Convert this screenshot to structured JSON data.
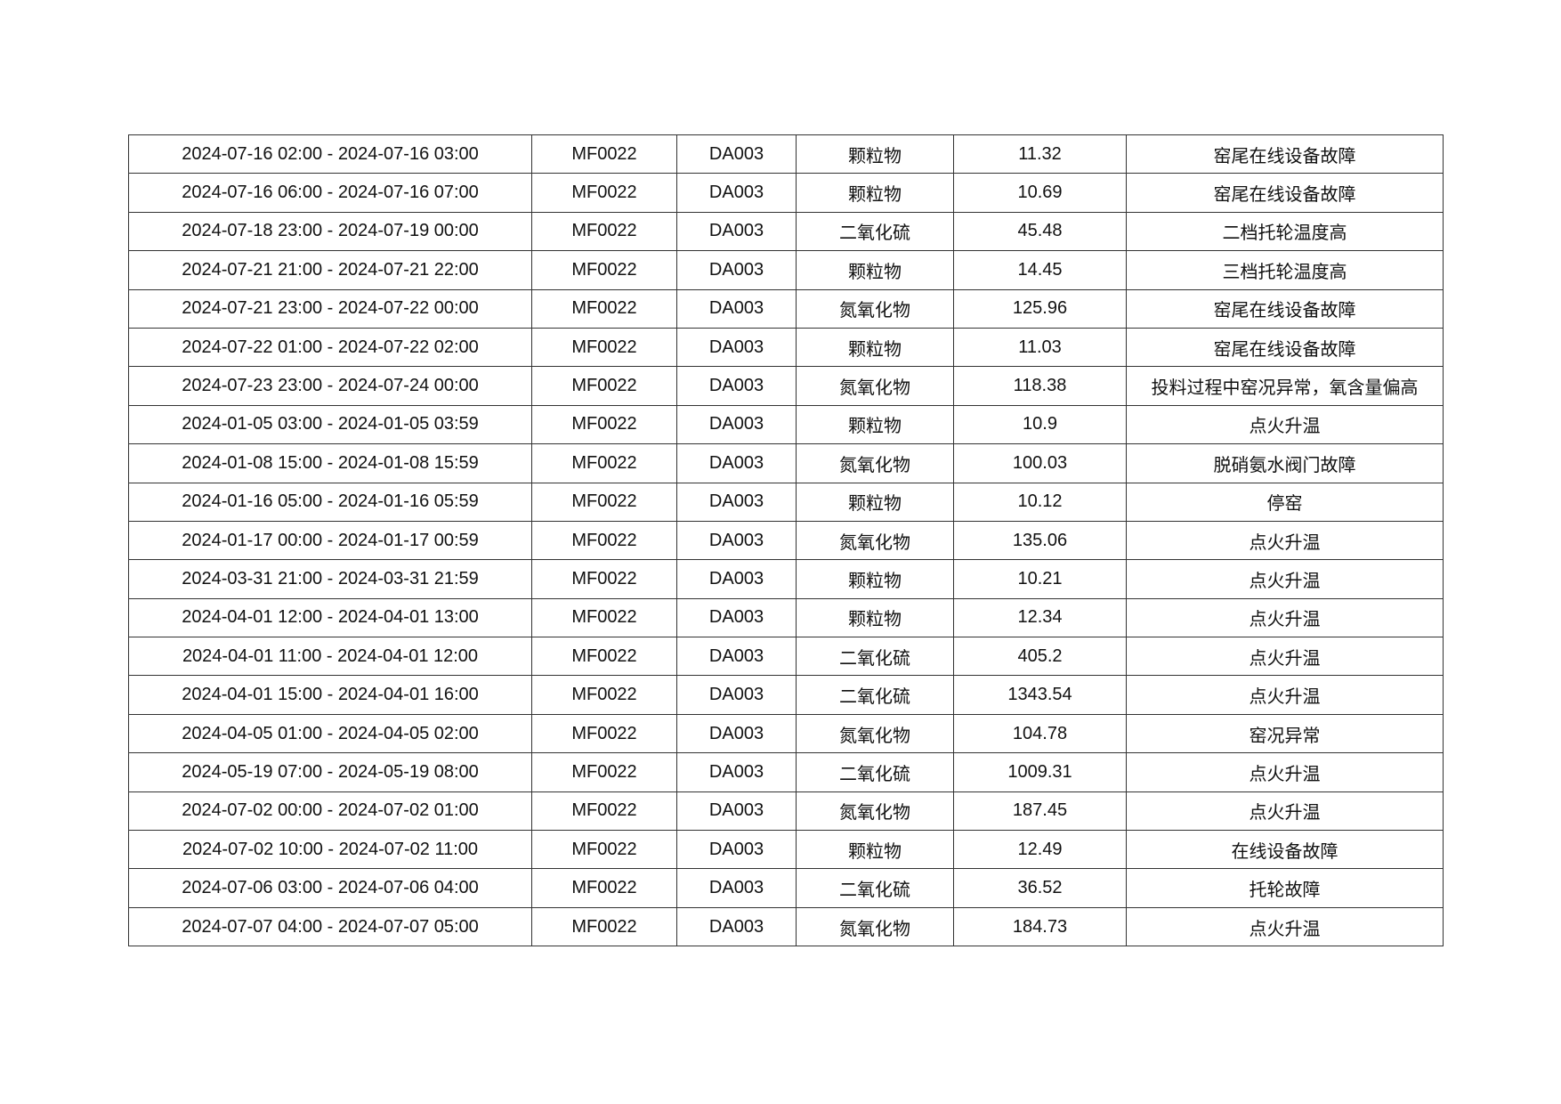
{
  "table": {
    "rows": [
      [
        "2024-07-16 02:00 - 2024-07-16 03:00",
        "MF0022",
        "DA003",
        "颗粒物",
        "11.32",
        "窑尾在线设备故障"
      ],
      [
        "2024-07-16 06:00 - 2024-07-16 07:00",
        "MF0022",
        "DA003",
        "颗粒物",
        "10.69",
        "窑尾在线设备故障"
      ],
      [
        "2024-07-18 23:00 - 2024-07-19 00:00",
        "MF0022",
        "DA003",
        "二氧化硫",
        "45.48",
        "二档托轮温度高"
      ],
      [
        "2024-07-21 21:00 - 2024-07-21 22:00",
        "MF0022",
        "DA003",
        "颗粒物",
        "14.45",
        "三档托轮温度高"
      ],
      [
        "2024-07-21 23:00 - 2024-07-22 00:00",
        "MF0022",
        "DA003",
        "氮氧化物",
        "125.96",
        "窑尾在线设备故障"
      ],
      [
        "2024-07-22 01:00 - 2024-07-22 02:00",
        "MF0022",
        "DA003",
        "颗粒物",
        "11.03",
        "窑尾在线设备故障"
      ],
      [
        "2024-07-23 23:00 - 2024-07-24 00:00",
        "MF0022",
        "DA003",
        "氮氧化物",
        "118.38",
        "投料过程中窑况异常，氧含量偏高"
      ],
      [
        "2024-01-05 03:00 - 2024-01-05 03:59",
        "MF0022",
        "DA003",
        "颗粒物",
        "10.9",
        "点火升温"
      ],
      [
        "2024-01-08 15:00 - 2024-01-08 15:59",
        "MF0022",
        "DA003",
        "氮氧化物",
        "100.03",
        "脱硝氨水阀门故障"
      ],
      [
        "2024-01-16 05:00 - 2024-01-16 05:59",
        "MF0022",
        "DA003",
        "颗粒物",
        "10.12",
        "停窑"
      ],
      [
        "2024-01-17 00:00 - 2024-01-17 00:59",
        "MF0022",
        "DA003",
        "氮氧化物",
        "135.06",
        "点火升温"
      ],
      [
        "2024-03-31 21:00 - 2024-03-31 21:59",
        "MF0022",
        "DA003",
        "颗粒物",
        "10.21",
        "点火升温"
      ],
      [
        "2024-04-01 12:00 - 2024-04-01 13:00",
        "MF0022",
        "DA003",
        "颗粒物",
        "12.34",
        "点火升温"
      ],
      [
        "2024-04-01 11:00 - 2024-04-01 12:00",
        "MF0022",
        "DA003",
        "二氧化硫",
        "405.2",
        "点火升温"
      ],
      [
        "2024-04-01 15:00 - 2024-04-01 16:00",
        "MF0022",
        "DA003",
        "二氧化硫",
        "1343.54",
        "点火升温"
      ],
      [
        "2024-04-05 01:00 - 2024-04-05 02:00",
        "MF0022",
        "DA003",
        "氮氧化物",
        "104.78",
        "窑况异常"
      ],
      [
        "2024-05-19 07:00 - 2024-05-19 08:00",
        "MF0022",
        "DA003",
        "二氧化硫",
        "1009.31",
        "点火升温"
      ],
      [
        "2024-07-02 00:00 - 2024-07-02 01:00",
        "MF0022",
        "DA003",
        "氮氧化物",
        "187.45",
        "点火升温"
      ],
      [
        "2024-07-02 10:00 - 2024-07-02 11:00",
        "MF0022",
        "DA003",
        "颗粒物",
        "12.49",
        "在线设备故障"
      ],
      [
        "2024-07-06 03:00 - 2024-07-06 04:00",
        "MF0022",
        "DA003",
        "二氧化硫",
        "36.52",
        "托轮故障"
      ],
      [
        "2024-07-07 04:00 - 2024-07-07 05:00",
        "MF0022",
        "DA003",
        "氮氧化物",
        "184.73",
        "点火升温"
      ]
    ]
  }
}
